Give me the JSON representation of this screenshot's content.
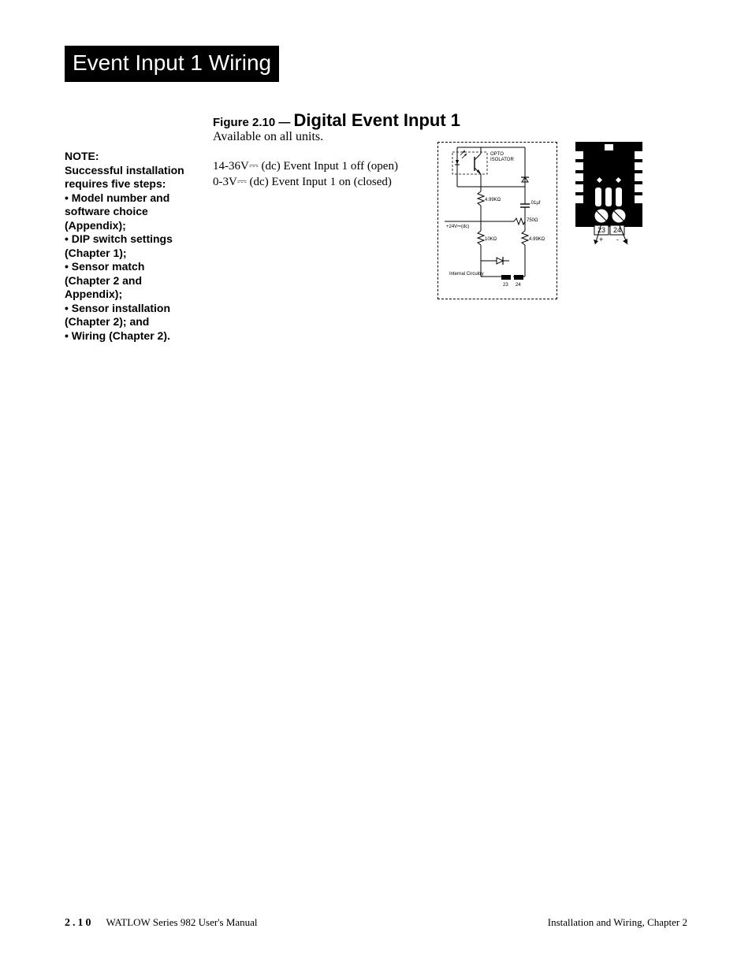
{
  "page_title": "Event Input 1 Wiring",
  "figure": {
    "number_prefix": "Figure 2.10 — ",
    "title": "Digital Event Input 1",
    "availability": "Available on all units.",
    "spec_off": "14-36V⎓ (dc) Event Input 1 off (open)",
    "spec_on": "0-3V⎓ (dc) Event Input 1 on (closed)"
  },
  "note": {
    "heading": "NOTE:",
    "intro": "Successful installation requires five steps:",
    "items": [
      "• Model number and software choice (Appendix);",
      "• DIP switch settings (Chapter 1);",
      "• Sensor match (Chapter 2 and Appendix);",
      "• Sensor installation (Chapter 2); and",
      "• Wiring (Chapter 2)."
    ]
  },
  "circuit": {
    "type": "schematic",
    "label_opto": "OPTO ISOLATOR",
    "r1": "4.99KΩ",
    "c1": ".01µf",
    "r2": "750Ω",
    "vref": "+24V⎓(dc)",
    "r3": "10KΩ",
    "r4": "4.99KΩ",
    "footer_label": "Internal Circuitry",
    "term_left": "23",
    "term_right": "24",
    "colors": {
      "line": "#000000",
      "bg": "#ffffff"
    }
  },
  "terminal": {
    "left_num": "23",
    "right_num": "24",
    "left_sign": "+",
    "right_sign": "-",
    "colors": {
      "block": "#000000",
      "slot": "#ffffff"
    }
  },
  "footer": {
    "page_number": "2.10",
    "manual_left": "WATLOW Series 982 User's Manual",
    "manual_right": "Installation and Wiring, Chapter 2"
  }
}
